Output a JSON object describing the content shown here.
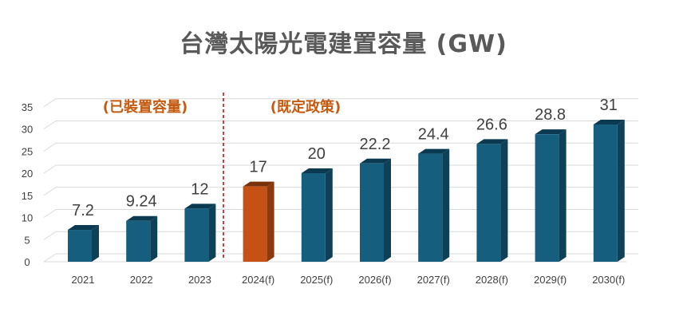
{
  "chart_data": {
    "type": "bar",
    "title": "台灣太陽光電建置容量 (GW)",
    "categories": [
      "2021",
      "2022",
      "2023",
      "2024(f)",
      "2025(f)",
      "2026(f)",
      "2027(f)",
      "2028(f)",
      "2029(f)",
      "2030(f)"
    ],
    "values": [
      7.2,
      9.24,
      12,
      17,
      20,
      22.2,
      24.4,
      26.6,
      28.8,
      31
    ],
    "data_labels": [
      "7.2",
      "9.24",
      "12",
      "17",
      "20",
      "22.2",
      "24.4",
      "26.6",
      "28.8",
      "31"
    ],
    "y_ticks": [
      "0",
      "5",
      "10",
      "15",
      "20",
      "25",
      "30",
      "35"
    ],
    "ylim": [
      0,
      35
    ],
    "grid": true,
    "highlight_index": 3,
    "annotations": [
      {
        "text": "(已裝置容量)",
        "color": "#C55A11"
      },
      {
        "text": "(既定政策)",
        "color": "#C55A11"
      }
    ],
    "divider": {
      "between": [
        "2023",
        "2024(f)"
      ],
      "style": "dashed",
      "color": "#C00000"
    },
    "colors": {
      "bar_front": "#155E7E",
      "bar_side": "#0E4158",
      "bar_top": "#0B3A50",
      "highlight_front": "#C55114",
      "highlight_side": "#8A3A0E",
      "highlight_top": "#7A320B",
      "grid": "#D9D9D9",
      "floor": "#D9D9D9"
    }
  }
}
